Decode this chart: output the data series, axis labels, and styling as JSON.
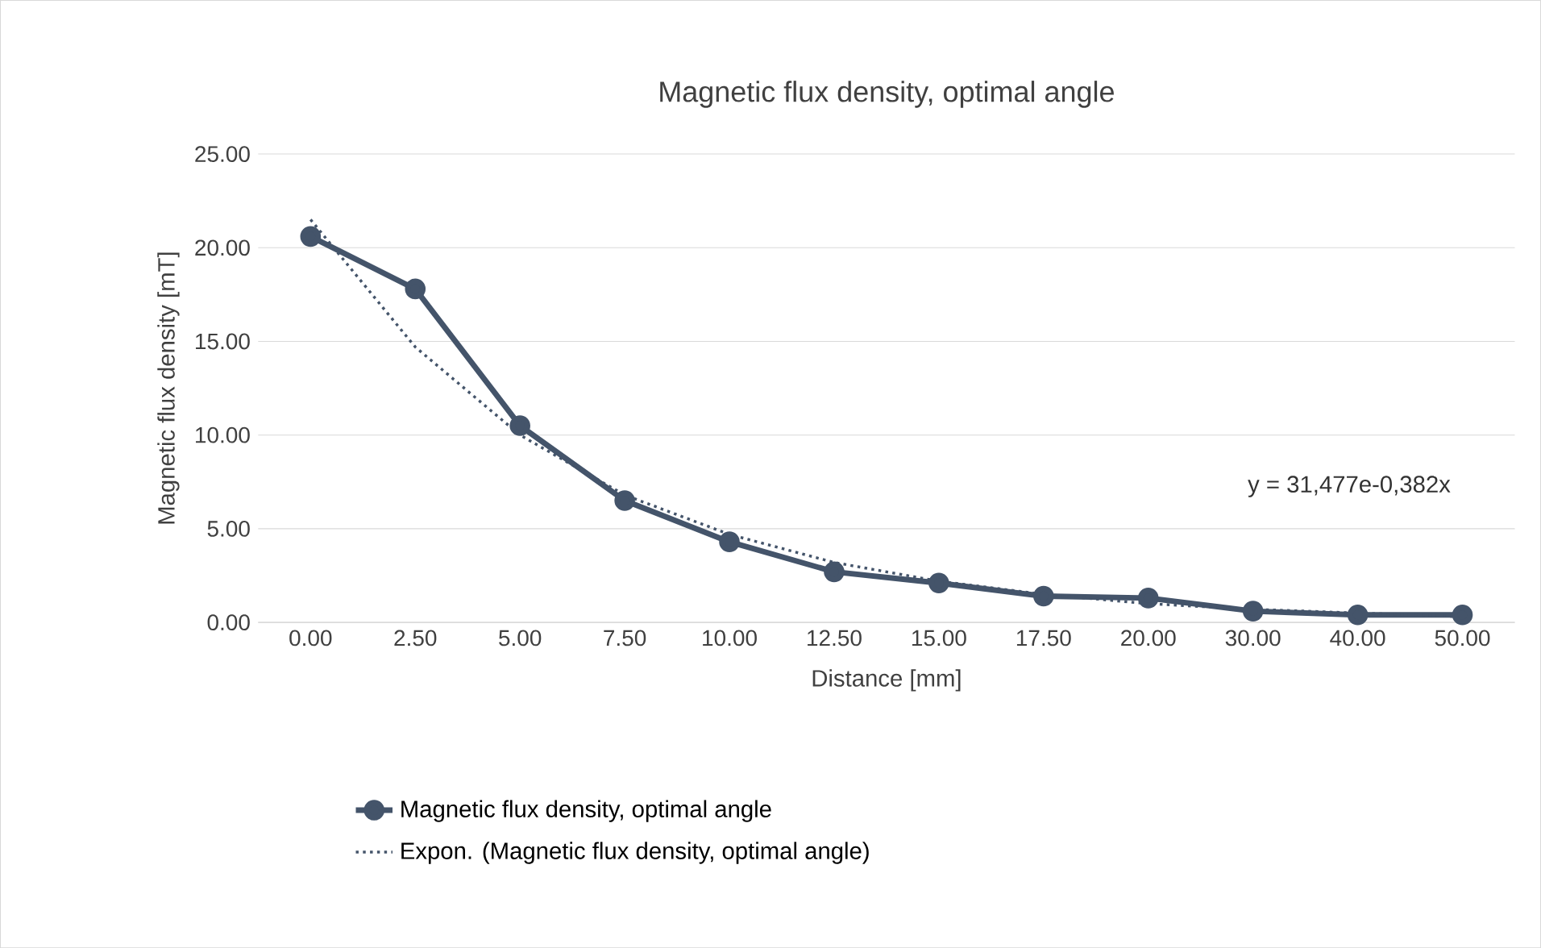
{
  "chart_data": {
    "type": "line",
    "title": "Magnetic flux density, optimal angle",
    "xlabel": "Distance [mm]",
    "ylabel": "Magnetic flux density [mT]",
    "categories": [
      "0.00",
      "2.50",
      "5.00",
      "7.50",
      "10.00",
      "12.50",
      "15.00",
      "17.50",
      "20.00",
      "30.00",
      "40.00",
      "50.00"
    ],
    "series": [
      {
        "name": "Magnetic flux density, optimal angle",
        "color": "#44546a",
        "marker": "circle",
        "line_style": "solid",
        "values": [
          20.6,
          17.8,
          10.5,
          6.5,
          4.3,
          2.7,
          2.1,
          1.4,
          1.3,
          0.6,
          0.4,
          0.4
        ]
      },
      {
        "name": "Expon. (Magnetic flux density, optimal angle)",
        "color": "#44546a",
        "marker": "none",
        "line_style": "dotted",
        "values": [
          21.5,
          14.7,
          10.0,
          6.8,
          4.7,
          3.2,
          2.2,
          1.5,
          1.0,
          0.7,
          0.5,
          0.3
        ]
      }
    ],
    "ylim": [
      0,
      25
    ],
    "yticks": [
      {
        "value": 0,
        "label": "0.00"
      },
      {
        "value": 5,
        "label": "5.00"
      },
      {
        "value": 10,
        "label": "10.00"
      },
      {
        "value": 15,
        "label": "15.00"
      },
      {
        "value": 20,
        "label": "20.00"
      },
      {
        "value": 25,
        "label": "25.00"
      }
    ],
    "grid": "y",
    "legend": "bottom",
    "annotations": [
      "y = 31,477e-0,382x"
    ]
  }
}
